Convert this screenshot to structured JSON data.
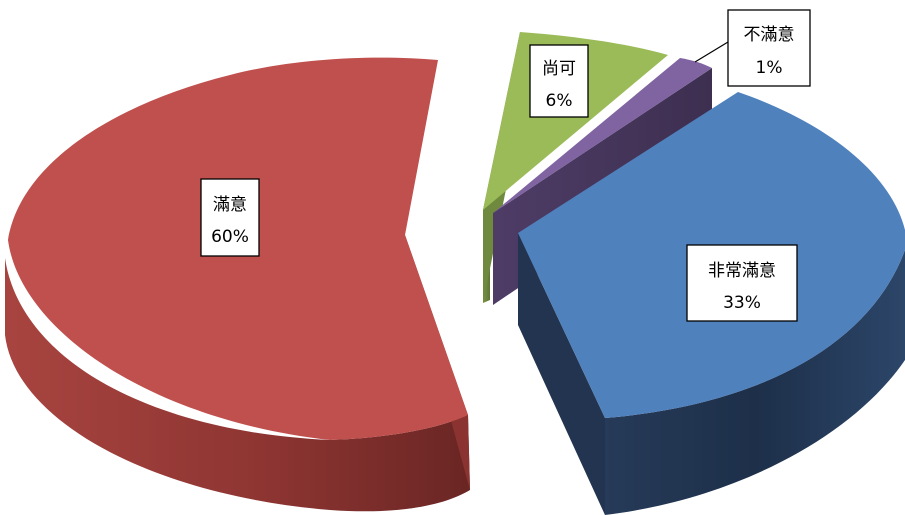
{
  "chart_data": {
    "type": "pie",
    "variant": "3d-exploded",
    "title": "",
    "series": [
      {
        "name": "",
        "slices": [
          {
            "label": "非常滿意",
            "value": 33,
            "value_text": "33%",
            "color": "#4F81BD"
          },
          {
            "label": "不滿意",
            "value": 1,
            "value_text": "1%",
            "color": "#8064A2"
          },
          {
            "label": "尚可",
            "value": 6,
            "value_text": "6%",
            "color": "#9BBB59"
          },
          {
            "label": "滿意",
            "value": 60,
            "value_text": "60%",
            "color": "#C0504D"
          }
        ]
      }
    ],
    "legend": "none",
    "data_labels": "category-and-percent"
  }
}
